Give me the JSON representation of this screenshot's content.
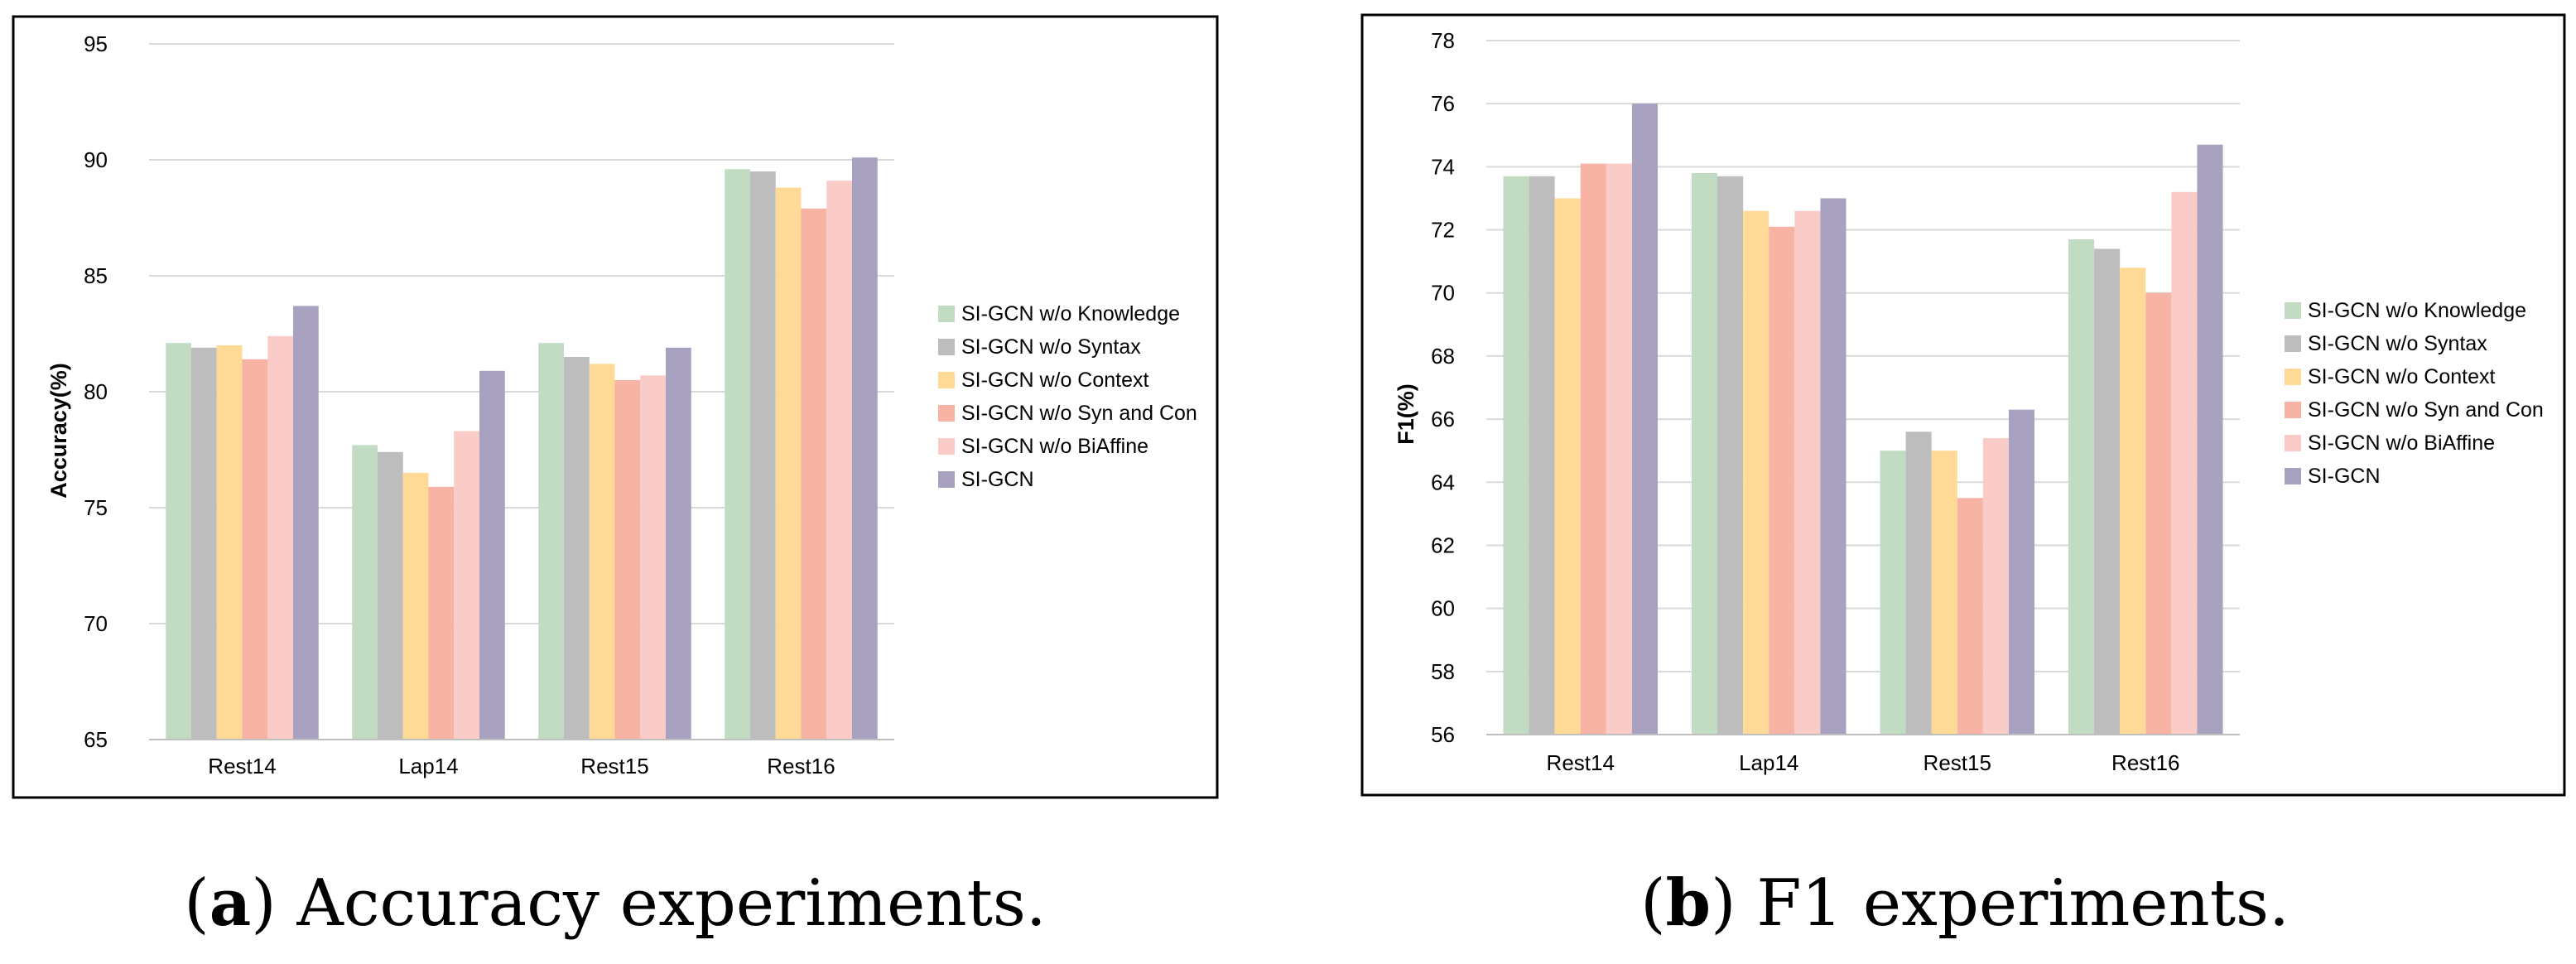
{
  "colors": {
    "series": [
      "#c2dcc3",
      "#bdbdbd",
      "#ffd996",
      "#f7b4a5",
      "#f9ccc7",
      "#a8a1c0"
    ],
    "grid": "#d9d9d9",
    "axis": "#bfbfbf",
    "frame": "#000000"
  },
  "chart_data": [
    {
      "type": "bar",
      "title": "",
      "xlabel": "",
      "ylabel": "Accuracy(%)",
      "ylim": [
        65,
        95
      ],
      "yticks": [
        65,
        70,
        75,
        80,
        85,
        90,
        95
      ],
      "categories": [
        "Rest14",
        "Lap14",
        "Rest15",
        "Rest16"
      ],
      "legend_position": "right",
      "series": [
        {
          "name": "SI-GCN w/o Knowledge",
          "values": [
            82.1,
            77.7,
            82.1,
            89.6
          ]
        },
        {
          "name": "SI-GCN w/o Syntax",
          "values": [
            81.9,
            77.4,
            81.5,
            89.5
          ]
        },
        {
          "name": "SI-GCN w/o Context",
          "values": [
            82.0,
            76.5,
            81.2,
            88.8
          ]
        },
        {
          "name": "SI-GCN w/o Syn and Con",
          "values": [
            81.4,
            75.9,
            80.5,
            87.9
          ]
        },
        {
          "name": "SI-GCN w/o BiAffine",
          "values": [
            82.4,
            78.3,
            80.7,
            89.1
          ]
        },
        {
          "name": "SI-GCN",
          "values": [
            83.7,
            80.9,
            81.9,
            90.1
          ]
        }
      ],
      "caption": {
        "label": "a",
        "text": " Accuracy experiments.",
        "open": "(",
        "close": ")"
      }
    },
    {
      "type": "bar",
      "title": "",
      "xlabel": "",
      "ylabel": "F1(%)",
      "ylim": [
        56,
        78
      ],
      "yticks": [
        56,
        58,
        60,
        62,
        64,
        66,
        68,
        70,
        72,
        74,
        76,
        78
      ],
      "categories": [
        "Rest14",
        "Lap14",
        "Rest15",
        "Rest16"
      ],
      "legend_position": "right",
      "series": [
        {
          "name": "SI-GCN w/o Knowledge",
          "values": [
            73.7,
            73.8,
            65.0,
            71.7
          ]
        },
        {
          "name": "SI-GCN w/o Syntax",
          "values": [
            73.7,
            73.7,
            65.6,
            71.4
          ]
        },
        {
          "name": "SI-GCN w/o Context",
          "values": [
            73.0,
            72.6,
            65.0,
            70.8
          ]
        },
        {
          "name": "SI-GCN w/o Syn and Con",
          "values": [
            74.1,
            72.1,
            63.5,
            70.0
          ]
        },
        {
          "name": "SI-GCN w/o BiAffine",
          "values": [
            74.1,
            72.6,
            65.4,
            73.2
          ]
        },
        {
          "name": "SI-GCN",
          "values": [
            76.0,
            73.0,
            66.3,
            74.7
          ]
        }
      ],
      "caption": {
        "label": "b",
        "text": " F1 experiments.",
        "open": "(",
        "close": ")"
      }
    }
  ]
}
